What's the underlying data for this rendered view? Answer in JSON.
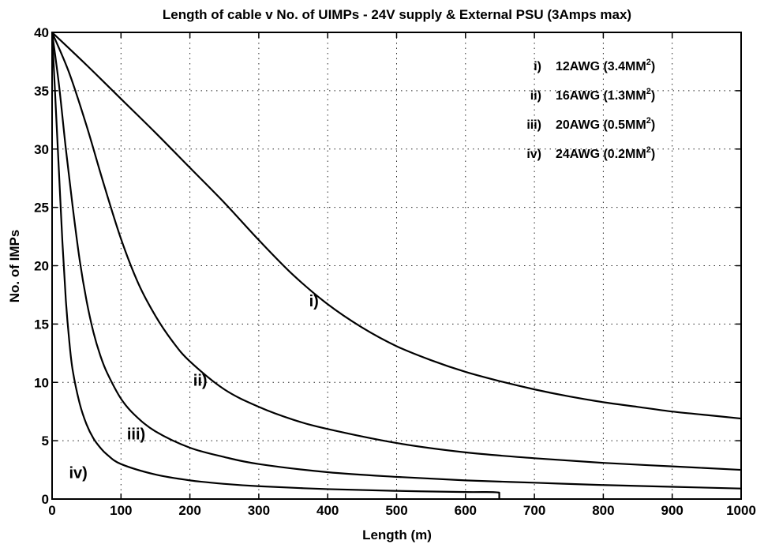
{
  "chart_data": {
    "type": "line",
    "title": "Length of cable v No. of UIMPs  -  24V supply & External PSU (3Amps max)",
    "xlabel": "Length (m)",
    "ylabel": "No. of IMPs",
    "xlim": [
      0,
      1000
    ],
    "ylim": [
      0,
      40
    ],
    "xticks": [
      0,
      100,
      200,
      300,
      400,
      500,
      600,
      700,
      800,
      900,
      1000
    ],
    "yticks": [
      0,
      5,
      10,
      15,
      20,
      25,
      30,
      35,
      40
    ],
    "grid": true,
    "legend_position": "top-right",
    "legend": [
      {
        "num": "i)",
        "text": "12AWG (3.4MM",
        "sup": "2",
        "close": ")"
      },
      {
        "num": "ii)",
        "text": "16AWG (1.3MM",
        "sup": "2",
        "close": ")"
      },
      {
        "num": "iii)",
        "text": "20AWG (0.5MM",
        "sup": "2",
        "close": ")"
      },
      {
        "num": "iv)",
        "text": "24AWG (0.2MM",
        "sup": "2",
        "close": ")"
      }
    ],
    "series": [
      {
        "label": "i)",
        "label_at": [
          380,
          16.5
        ],
        "x": [
          0,
          50,
          100,
          150,
          200,
          250,
          300,
          350,
          400,
          450,
          500,
          550,
          600,
          650,
          700,
          750,
          800,
          850,
          900,
          950,
          1000
        ],
        "y": [
          40,
          37.2,
          34.3,
          31.4,
          28.4,
          25.4,
          22.2,
          19.2,
          16.7,
          14.7,
          13.1,
          11.9,
          10.9,
          10.1,
          9.4,
          8.8,
          8.3,
          7.9,
          7.5,
          7.2,
          6.9
        ]
      },
      {
        "label": "ii)",
        "label_at": [
          215,
          9.7
        ],
        "x": [
          0,
          25,
          50,
          75,
          100,
          125,
          150,
          175,
          200,
          250,
          300,
          350,
          400,
          500,
          600,
          700,
          800,
          900,
          1000
        ],
        "y": [
          40,
          36.5,
          32.0,
          27.0,
          22.3,
          18.5,
          15.7,
          13.5,
          11.8,
          9.4,
          7.9,
          6.8,
          6.0,
          4.8,
          4.0,
          3.5,
          3.1,
          2.8,
          2.5
        ]
      },
      {
        "label": "iii)",
        "label_at": [
          122,
          5.1
        ],
        "x": [
          0,
          10,
          20,
          30,
          40,
          50,
          60,
          70,
          80,
          100,
          120,
          150,
          200,
          250,
          300,
          400,
          500,
          600,
          700,
          800,
          900,
          1000
        ],
        "y": [
          40,
          35.5,
          30.0,
          25.0,
          20.5,
          17.0,
          14.3,
          12.3,
          10.8,
          8.6,
          7.2,
          5.8,
          4.4,
          3.6,
          3.0,
          2.3,
          1.9,
          1.6,
          1.4,
          1.2,
          1.05,
          0.9
        ]
      },
      {
        "label": "iv)",
        "label_at": [
          38,
          1.8
        ],
        "x": [
          0,
          5,
          10,
          15,
          20,
          25,
          30,
          40,
          50,
          60,
          70,
          80,
          100,
          150,
          200,
          250,
          300,
          400,
          500,
          600,
          649,
          649
        ],
        "y": [
          40,
          34.0,
          28.0,
          22.0,
          17.0,
          13.5,
          11.0,
          8.2,
          6.4,
          5.2,
          4.4,
          3.8,
          3.0,
          2.1,
          1.6,
          1.3,
          1.1,
          0.85,
          0.7,
          0.6,
          0.55,
          0
        ]
      }
    ]
  }
}
